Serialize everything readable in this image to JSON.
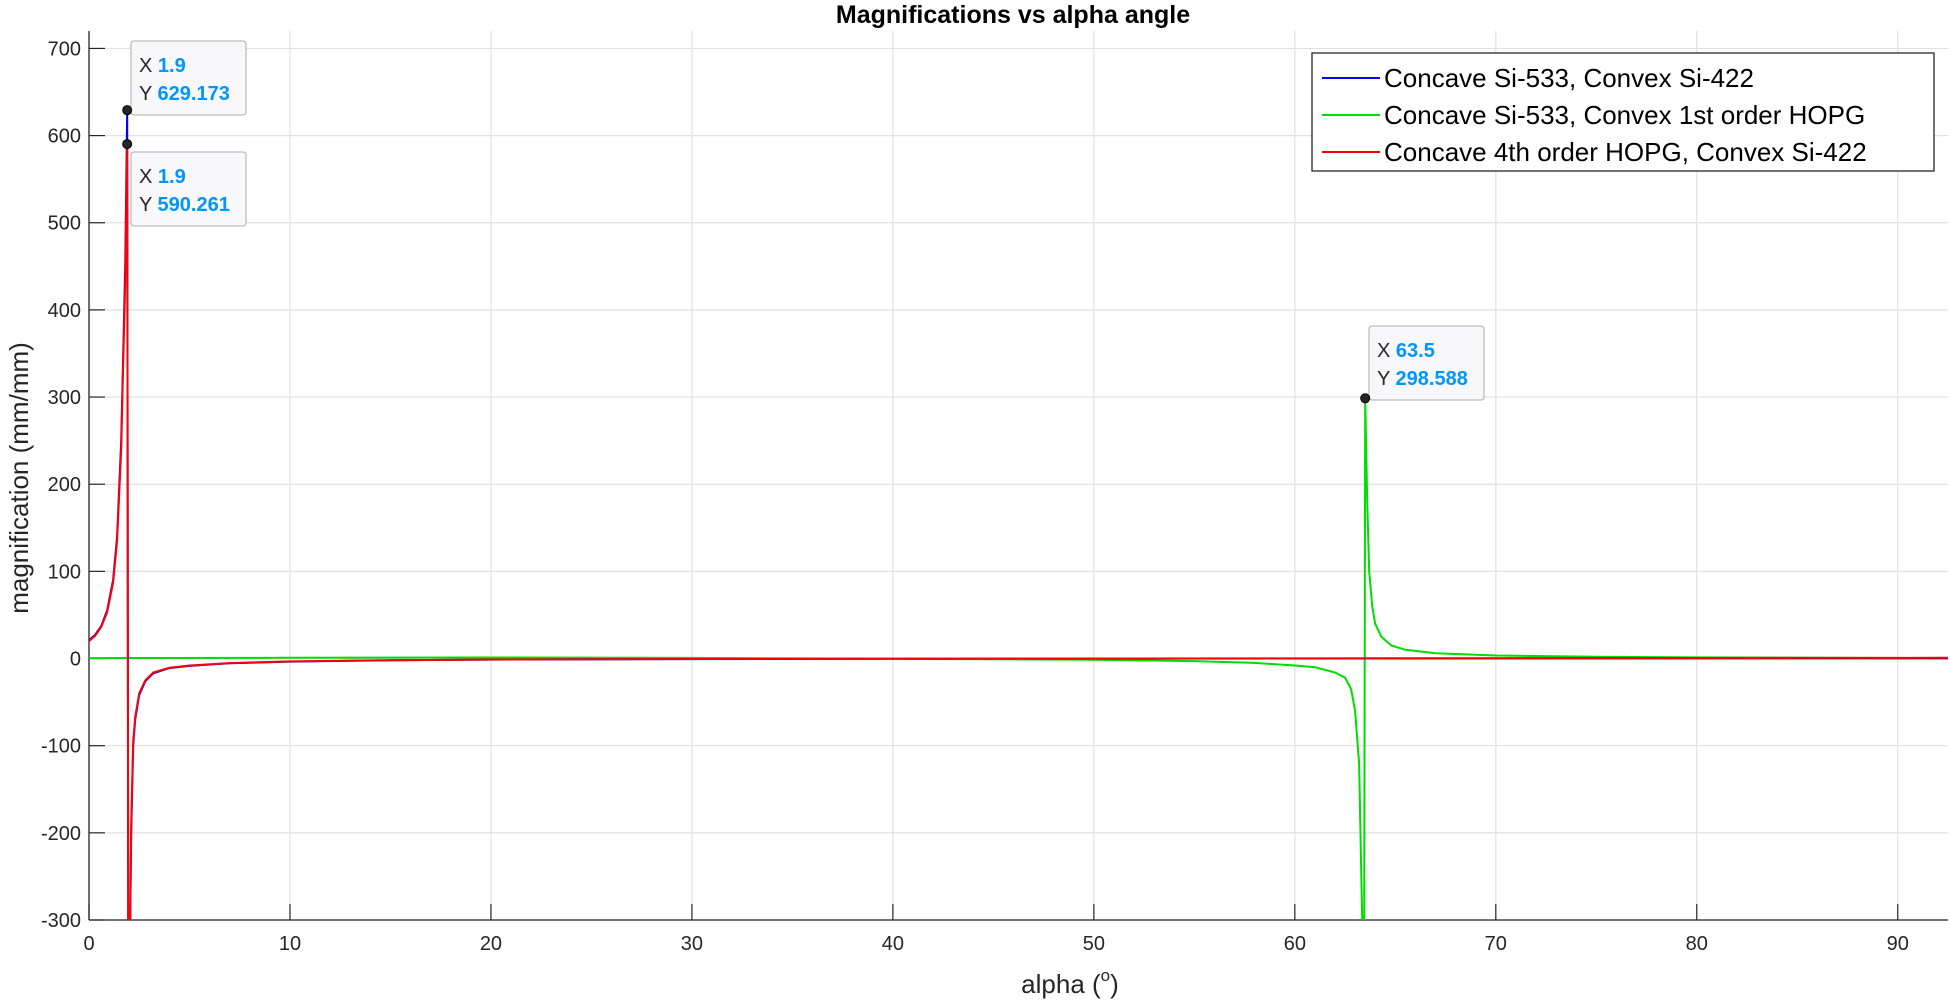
{
  "chart_data": {
    "type": "line",
    "title": "Magnifications vs alpha angle",
    "xlabel": "alpha (",
    "xlabel_superscript": "o",
    "xlabel_suffix": ")",
    "ylabel": "magnification (mm/mm)",
    "xlim": [
      0,
      92.5
    ],
    "ylim": [
      -300,
      720
    ],
    "grid": true,
    "legend_position": "top-right",
    "x_ticks": [
      0,
      10,
      20,
      30,
      40,
      50,
      60,
      70,
      80,
      90
    ],
    "x_tick_labels": [
      "0",
      "10",
      "20",
      "30",
      "40",
      "50",
      "60",
      "70",
      "80",
      "90"
    ],
    "y_ticks": [
      -300,
      -200,
      -100,
      0,
      100,
      200,
      300,
      400,
      500,
      600,
      700
    ],
    "y_tick_labels": [
      "-300",
      "-200",
      "-100",
      "0",
      "100",
      "200",
      "300",
      "400",
      "500",
      "600",
      "700"
    ],
    "series": [
      {
        "name": "Concave Si-533, Convex Si-422",
        "color": "#0000ff",
        "x": [
          0,
          0.3,
          0.6,
          0.9,
          1.2,
          1.4,
          1.6,
          1.7,
          1.8,
          1.85,
          1.9,
          1.95,
          2.0,
          2.05,
          2.1,
          2.2,
          2.3,
          2.5,
          2.8,
          3.2,
          4,
          5,
          7,
          10,
          15,
          20,
          30,
          40,
          50,
          60,
          63,
          64,
          70,
          80,
          92.5
        ],
        "y": [
          21,
          27,
          37,
          55,
          90,
          140,
          250,
          350,
          450,
          540,
          629.173,
          -300,
          -300,
          -300,
          -200,
          -100,
          -70,
          -42,
          -26,
          -17,
          -11,
          -8.5,
          -5.5,
          -3.5,
          -2,
          -1.2,
          -0.6,
          -0.3,
          -0.1,
          0,
          0,
          0,
          0.1,
          0.1,
          0.1
        ]
      },
      {
        "name": "Concave Si-533, Convex 1st order HOPG",
        "color": "#00dd00",
        "x": [
          0,
          10,
          20,
          30,
          40,
          50,
          55,
          58,
          60,
          61,
          62,
          62.5,
          62.8,
          63.0,
          63.2,
          63.35,
          63.45,
          63.5,
          63.6,
          63.7,
          63.85,
          64.0,
          64.3,
          64.8,
          65.5,
          67,
          70,
          75,
          80,
          86,
          92.5
        ],
        "y": [
          0.5,
          0.8,
          1.2,
          0.7,
          -0.3,
          -1.5,
          -3,
          -5,
          -8,
          -10,
          -16,
          -22,
          -35,
          -60,
          -120,
          -300,
          -300,
          298.588,
          180,
          100,
          60,
          40,
          25,
          15,
          10,
          6,
          3.5,
          2,
          1.3,
          0.8,
          0.5
        ]
      },
      {
        "name": "Concave 4th order HOPG, Convex Si-422",
        "color": "#ff0000",
        "x": [
          0,
          0.3,
          0.6,
          0.9,
          1.2,
          1.4,
          1.6,
          1.7,
          1.8,
          1.85,
          1.9,
          1.95,
          2.0,
          2.05,
          2.1,
          2.2,
          2.3,
          2.5,
          2.8,
          3.2,
          4,
          5,
          7,
          10,
          15,
          20,
          30,
          40,
          50,
          60,
          70,
          80,
          92.5
        ],
        "y": [
          20,
          26,
          36,
          53,
          87,
          135,
          240,
          340,
          430,
          510,
          590.261,
          -300,
          -300,
          -300,
          -190,
          -95,
          -67,
          -40,
          -25,
          -16,
          -10.5,
          -8,
          -5.2,
          -3.3,
          -1.9,
          -1.1,
          -0.5,
          -0.2,
          0,
          0.2,
          0.4,
          0.6,
          0.8
        ]
      }
    ],
    "datatips": [
      {
        "x_label": "X",
        "x_value": "1.9",
        "y_label": "Y",
        "y_value": "629.173",
        "x": 1.9,
        "y": 629.173
      },
      {
        "x_label": "X",
        "x_value": "1.9",
        "y_label": "Y",
        "y_value": "590.261",
        "x": 1.9,
        "y": 590.261
      },
      {
        "x_label": "X",
        "x_value": "63.5",
        "y_label": "Y",
        "y_value": "298.588",
        "x": 63.5,
        "y": 298.588
      }
    ],
    "datatip_value_color": "#0095ff"
  }
}
